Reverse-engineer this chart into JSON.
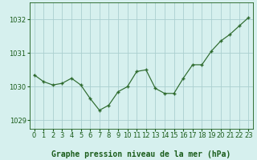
{
  "hours": [
    0,
    1,
    2,
    3,
    4,
    5,
    6,
    7,
    8,
    9,
    10,
    11,
    12,
    13,
    14,
    15,
    16,
    17,
    18,
    19,
    20,
    21,
    22,
    23
  ],
  "pressure": [
    1030.35,
    1030.15,
    1030.05,
    1030.1,
    1030.25,
    1030.05,
    1029.65,
    1029.3,
    1029.45,
    1029.85,
    1030.0,
    1030.45,
    1030.5,
    1029.95,
    1029.8,
    1029.8,
    1030.25,
    1030.65,
    1030.65,
    1031.05,
    1031.35,
    1031.55,
    1031.8,
    1032.05
  ],
  "ylim": [
    1028.75,
    1032.5
  ],
  "yticks": [
    1029,
    1030,
    1031,
    1032
  ],
  "xticks": [
    0,
    1,
    2,
    3,
    4,
    5,
    6,
    7,
    8,
    9,
    10,
    11,
    12,
    13,
    14,
    15,
    16,
    17,
    18,
    19,
    20,
    21,
    22,
    23
  ],
  "line_color": "#2d6a2d",
  "marker_color": "#2d6a2d",
  "bg_color": "#d6f0ee",
  "grid_color": "#aacfcf",
  "xlabel": "Graphe pression niveau de la mer (hPa)",
  "xlabel_color": "#1a5c1a",
  "tick_color": "#1a5c1a",
  "axis_label_fontsize": 7.0,
  "tick_fontsize": 6.0
}
